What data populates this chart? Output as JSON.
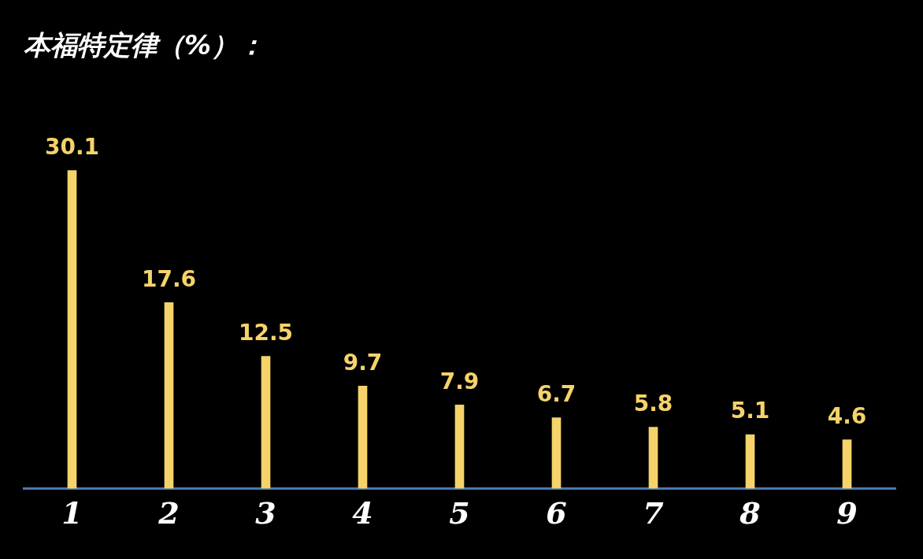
{
  "chart_data": {
    "type": "bar",
    "title": "本福特定律（%）：",
    "categories": [
      "1",
      "2",
      "3",
      "4",
      "5",
      "6",
      "7",
      "8",
      "9"
    ],
    "values": [
      30.1,
      17.6,
      12.5,
      9.7,
      7.9,
      6.7,
      5.8,
      5.1,
      4.6
    ],
    "color": "#f5d36a",
    "data_labels": true,
    "legend": false
  }
}
